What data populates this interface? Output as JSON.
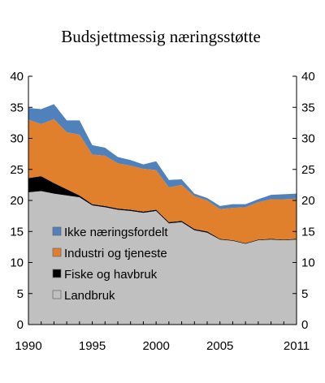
{
  "chart_data": {
    "type": "area",
    "stacked": true,
    "title": "Budsjettmessig næringsstøtte",
    "xlabel": "",
    "ylabel": "",
    "x": [
      1990,
      1991,
      1992,
      1993,
      1994,
      1995,
      1996,
      1997,
      1998,
      1999,
      2000,
      2001,
      2002,
      2003,
      2004,
      2005,
      2006,
      2007,
      2008,
      2009,
      2010,
      2011
    ],
    "xlim": [
      1990,
      2011
    ],
    "ylim": [
      0,
      40
    ],
    "x_ticks": [
      1990,
      1995,
      2000,
      2005,
      2011
    ],
    "y_ticks": [
      0,
      5,
      10,
      15,
      20,
      25,
      30,
      35,
      40
    ],
    "y_axis_both_sides": true,
    "grid": false,
    "legend_position": "lower-left, inside plot",
    "series": [
      {
        "name": "Landbruk",
        "color": "#c0c0c0",
        "values": [
          21.3,
          21.5,
          21.1,
          20.8,
          20.5,
          19.2,
          18.9,
          18.5,
          18.3,
          18.0,
          18.3,
          16.3,
          16.5,
          15.2,
          14.8,
          13.7,
          13.5,
          13.0,
          13.6,
          13.7,
          13.6,
          13.7
        ]
      },
      {
        "name": "Fiske og havbruk",
        "color": "#000000",
        "values": [
          2.3,
          2.4,
          1.7,
          1.0,
          0.3,
          0.2,
          0.2,
          0.2,
          0.2,
          0.2,
          0.2,
          0.2,
          0.2,
          0.2,
          0.2,
          0.1,
          0.1,
          0.1,
          0.1,
          0.1,
          0.1,
          0.1
        ]
      },
      {
        "name": "Industri og tjeneste",
        "color": "#e07f2c",
        "values": [
          9.4,
          8.4,
          10.3,
          9.2,
          9.8,
          8.0,
          8.1,
          7.3,
          7.1,
          6.9,
          6.4,
          5.6,
          5.8,
          5.3,
          5.0,
          4.8,
          5.2,
          5.8,
          6.0,
          6.4,
          6.5,
          6.5
        ]
      },
      {
        "name": "Ikke næringsfordelt",
        "color": "#4f81bd",
        "values": [
          1.9,
          2.4,
          2.4,
          1.9,
          2.3,
          1.5,
          1.3,
          1.0,
          0.9,
          0.7,
          1.4,
          1.2,
          0.9,
          0.4,
          0.4,
          0.5,
          0.6,
          0.5,
          0.5,
          0.7,
          0.8,
          0.8
        ]
      }
    ]
  }
}
